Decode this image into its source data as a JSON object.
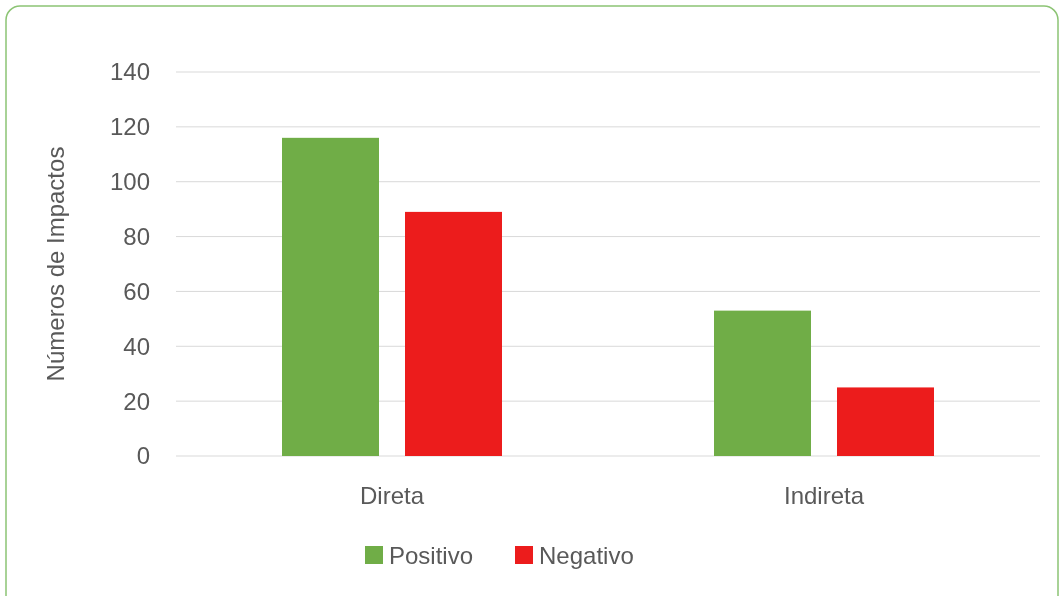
{
  "chart_data": {
    "type": "bar",
    "ylabel": "Números de Impactos",
    "categories": [
      "Direta",
      "Indireta"
    ],
    "series": [
      {
        "name": "Positivo",
        "color": "#70ad47",
        "values": [
          116,
          53
        ]
      },
      {
        "name": "Negativo",
        "color": "#ec1c1c",
        "values": [
          89,
          25
        ]
      }
    ],
    "ylim": [
      0,
      140
    ],
    "yticks": [
      0,
      20,
      40,
      60,
      80,
      100,
      120,
      140
    ],
    "grid": "y",
    "legend": "bottom"
  }
}
